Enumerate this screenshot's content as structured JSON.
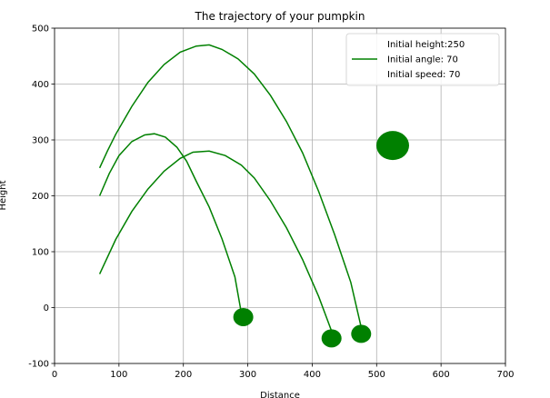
{
  "chart_data": {
    "type": "line",
    "title": "The trajectory of your pumpkin",
    "xlabel": "Distance",
    "ylabel": "Height",
    "xlim": [
      0,
      700
    ],
    "ylim": [
      -100,
      500
    ],
    "xticks": [
      0,
      100,
      200,
      300,
      400,
      500,
      600,
      700
    ],
    "yticks": [
      -100,
      0,
      100,
      200,
      300,
      400,
      500
    ],
    "grid": true,
    "legend": {
      "placement": "upper right",
      "entries": [
        "Initial height:250",
        "Initial angle: 70",
        "Initial speed: 70"
      ]
    },
    "color": "#008000",
    "series": [
      {
        "x": [
          70,
          82,
          95,
          120,
          145,
          170,
          195,
          220,
          240,
          260,
          285,
          310,
          335,
          360,
          385,
          410,
          435,
          460,
          478
        ],
        "y": [
          250,
          280,
          310,
          360,
          403,
          435,
          457,
          468,
          470,
          462,
          445,
          418,
          380,
          333,
          277,
          208,
          130,
          45,
          -45
        ]
      },
      {
        "x": [
          70,
          85,
          100,
          120,
          140,
          155,
          172,
          190,
          205,
          220,
          240,
          260,
          280,
          290
        ],
        "y": [
          200,
          240,
          272,
          297,
          309,
          311,
          305,
          287,
          262,
          226,
          180,
          123,
          55,
          -10
        ]
      },
      {
        "x": [
          70,
          95,
          120,
          145,
          170,
          195,
          215,
          240,
          265,
          290,
          310,
          335,
          360,
          385,
          410,
          432
        ],
        "y": [
          60,
          122,
          172,
          212,
          244,
          267,
          278,
          280,
          272,
          255,
          232,
          191,
          143,
          86,
          20,
          -48
        ]
      }
    ],
    "markers": [
      {
        "x": 293,
        "y": -17
      },
      {
        "x": 430,
        "y": -55
      },
      {
        "x": 476,
        "y": -47
      },
      {
        "x": 525,
        "y": 290,
        "size": "large"
      }
    ]
  }
}
